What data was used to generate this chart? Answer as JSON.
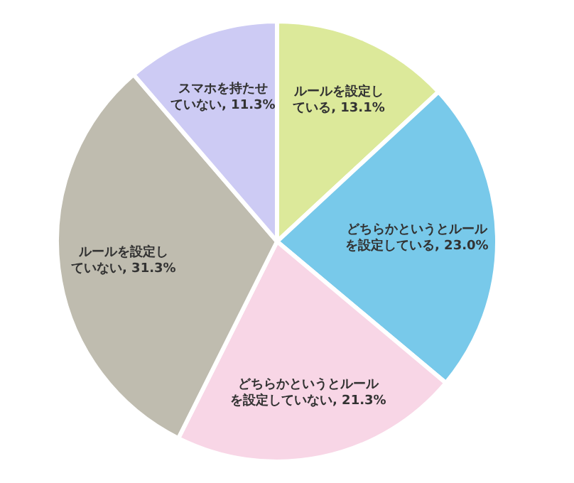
{
  "chart_data": {
    "type": "pie",
    "categories": [
      "ルールを設定している",
      "どちらかというとルールを設定している",
      "どちらかというとルールを設定していない",
      "ルールを設定していない",
      "スマホを持たせていない"
    ],
    "values": [
      13.1,
      23.0,
      21.3,
      31.3,
      11.3
    ],
    "value_labels": [
      "13.1%",
      "23.0%",
      "21.3%",
      "31.3%",
      "11.3%"
    ],
    "colors": [
      "#dce99a",
      "#78c9ea",
      "#f8d6e6",
      "#bfbcaf",
      "#cdcbf4"
    ],
    "legend": false
  }
}
